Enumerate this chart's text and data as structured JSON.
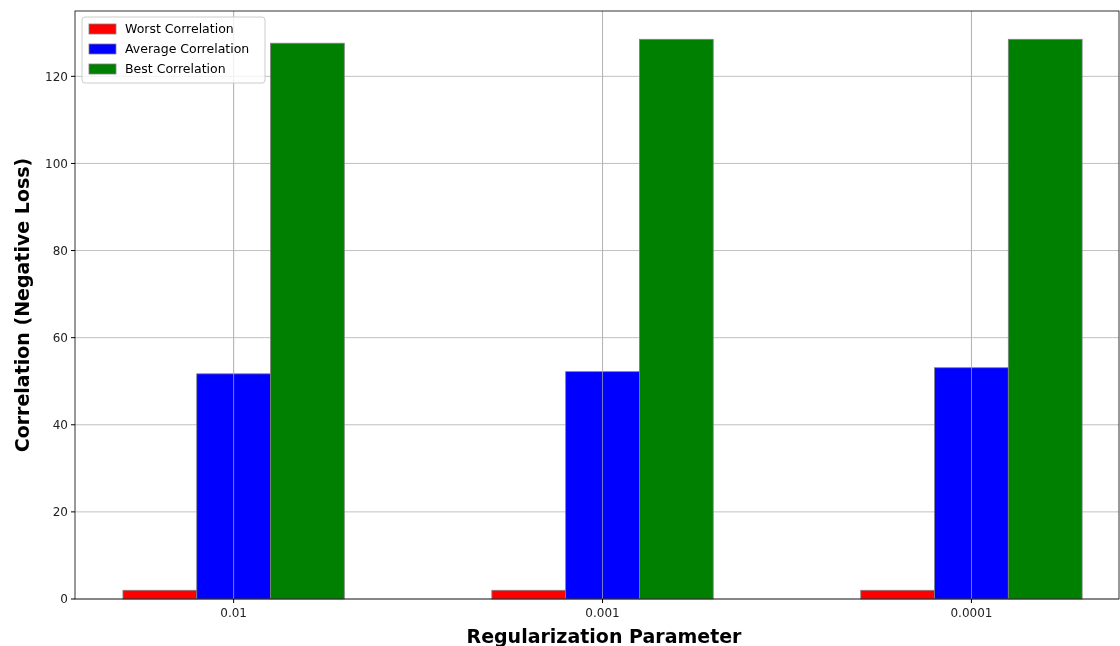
{
  "chart_data": {
    "type": "bar",
    "xlabel": "Regularization Parameter",
    "ylabel": "Correlation (Negative Loss)",
    "categories": [
      "0.01",
      "0.001",
      "0.0001"
    ],
    "series": [
      {
        "name": "Worst Correlation",
        "color": "#ff0000",
        "values": [
          2,
          2,
          2
        ]
      },
      {
        "name": "Average Correlation",
        "color": "#0000ff",
        "values": [
          51.7,
          52.2,
          53.1
        ]
      },
      {
        "name": "Best Correlation",
        "color": "#008000",
        "values": [
          127.6,
          128.5,
          128.5
        ]
      }
    ],
    "ylim": [
      0,
      135
    ],
    "yticks": [
      0,
      20,
      40,
      60,
      80,
      100,
      120
    ],
    "grid": true,
    "legend": "top left"
  }
}
